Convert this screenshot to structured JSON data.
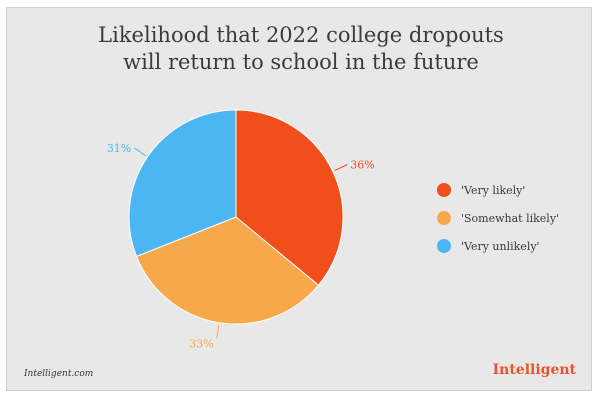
{
  "title_line1": "Likelihood that 2022 college dropouts",
  "title_line2": "will return to school in the future",
  "source": "Intelligent.com",
  "brand": "Intelligent",
  "chart_data": {
    "type": "pie",
    "title": "Likelihood that 2022 college dropouts will return to school in the future",
    "slices": [
      {
        "label": "'Very likely'",
        "value": 36,
        "display": "36%",
        "color": "#f04e1a"
      },
      {
        "label": "'Somewhat likely'",
        "value": 33,
        "display": "33%",
        "color": "#f7a84b"
      },
      {
        "label": "'Very unlikely'",
        "value": 31,
        "display": "31%",
        "color": "#4bb6f2"
      }
    ],
    "legend_position": "right"
  }
}
